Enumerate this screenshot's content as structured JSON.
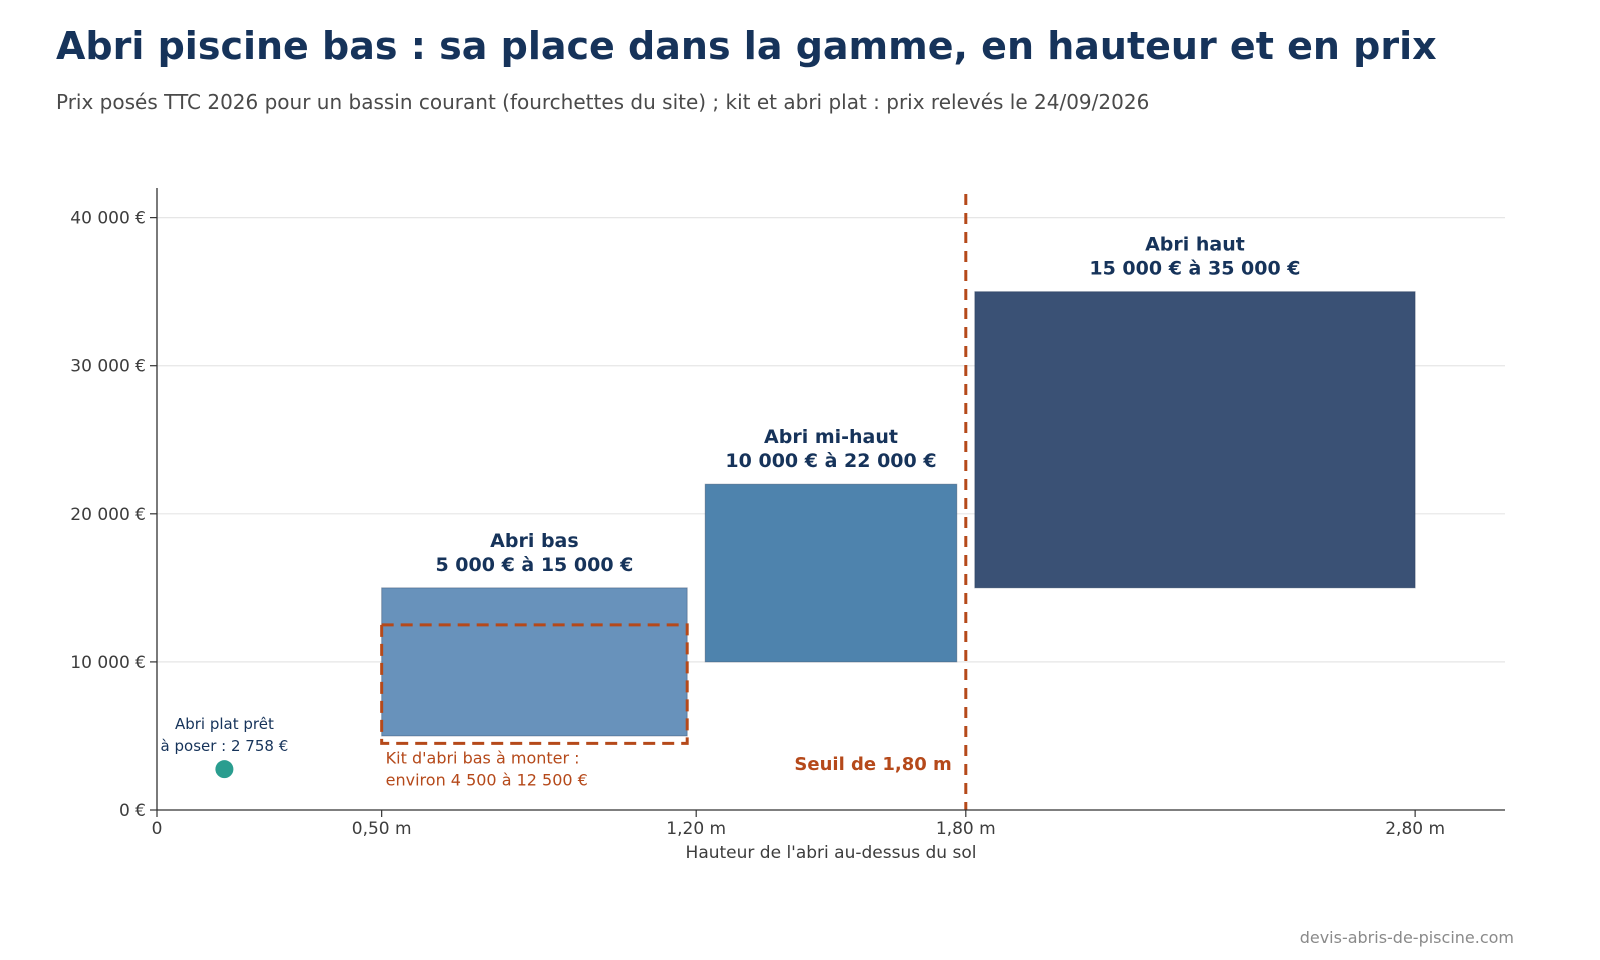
{
  "title": "Abri piscine bas : sa place dans la gamme, en hauteur et en prix",
  "subtitle": "Prix posés TTC 2026 pour un bassin courant (fourchettes du site) ; kit et abri plat : prix relevés le 24/09/2026",
  "source": "devis-abris-de-piscine.com",
  "chart_data": {
    "type": "range-box",
    "xlabel": "Hauteur de l'abri au-dessus du sol",
    "ylabel": "",
    "xlim": [
      0,
      3.0
    ],
    "ylim": [
      0,
      42000
    ],
    "x_ticks": [
      {
        "value": 0,
        "label": "0"
      },
      {
        "value": 0.5,
        "label": "0,50 m"
      },
      {
        "value": 1.2,
        "label": "1,20 m"
      },
      {
        "value": 1.8,
        "label": "1,80 m"
      },
      {
        "value": 2.8,
        "label": "2,80 m"
      }
    ],
    "y_ticks": [
      {
        "value": 0,
        "label": "0 €"
      },
      {
        "value": 10000,
        "label": "10 000 €"
      },
      {
        "value": 20000,
        "label": "20 000 €"
      },
      {
        "value": 30000,
        "label": "30 000 €"
      },
      {
        "value": 40000,
        "label": "40 000 €"
      }
    ],
    "grid": "horizontal",
    "ranges": [
      {
        "name": "Abri bas",
        "label": "5 000 € à 15 000 €",
        "x_min": 0.5,
        "x_max": 1.2,
        "y_min": 5000,
        "y_max": 15000,
        "color": "#6892bb"
      },
      {
        "name": "Abri mi-haut",
        "label": "10 000 € à 22 000 €",
        "x_min": 1.2,
        "x_max": 1.8,
        "y_min": 10000,
        "y_max": 22000,
        "color": "#4e83ad"
      },
      {
        "name": "Abri haut",
        "label": "15 000 € à 35 000 €",
        "x_min": 1.8,
        "x_max": 2.8,
        "y_min": 15000,
        "y_max": 35000,
        "color": "#3a5175"
      }
    ],
    "kit": {
      "label_line1": "Kit d'abri bas à monter :",
      "label_line2": "environ 4 500 à 12 500 €",
      "x_min": 0.5,
      "x_max": 1.2,
      "y_min": 4500,
      "y_max": 12500,
      "color": "#b5491a"
    },
    "point": {
      "label_line1": "Abri plat prêt",
      "label_line2": "à poser : 2 758 €",
      "x": 0.15,
      "y": 2758,
      "color": "#2a9d8f"
    },
    "threshold": {
      "x": 1.8,
      "label": "Seuil de 1,80 m",
      "color": "#b5491a"
    }
  }
}
